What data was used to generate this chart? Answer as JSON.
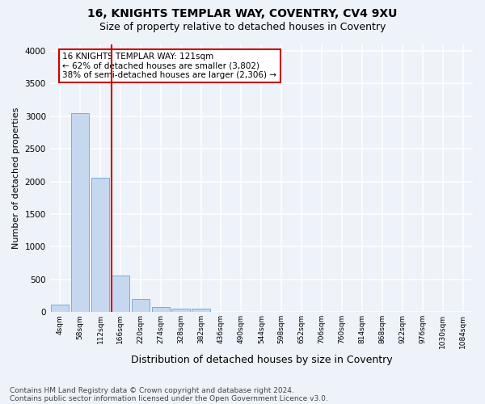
{
  "title1": "16, KNIGHTS TEMPLAR WAY, COVENTRY, CV4 9XU",
  "title2": "Size of property relative to detached houses in Coventry",
  "xlabel": "Distribution of detached houses by size in Coventry",
  "ylabel": "Number of detached properties",
  "bar_color": "#c5d8ef",
  "bar_edge_color": "#7aafd4",
  "categories": [
    "4sqm",
    "58sqm",
    "112sqm",
    "166sqm",
    "220sqm",
    "274sqm",
    "328sqm",
    "382sqm",
    "436sqm",
    "490sqm",
    "544sqm",
    "598sqm",
    "652sqm",
    "706sqm",
    "760sqm",
    "814sqm",
    "868sqm",
    "922sqm",
    "976sqm",
    "1030sqm",
    "1084sqm"
  ],
  "values": [
    120,
    3050,
    2060,
    560,
    205,
    80,
    55,
    55,
    0,
    0,
    0,
    0,
    0,
    0,
    0,
    0,
    0,
    0,
    0,
    0,
    0
  ],
  "ylim": [
    0,
    4100
  ],
  "yticks": [
    0,
    500,
    1000,
    1500,
    2000,
    2500,
    3000,
    3500,
    4000
  ],
  "vline_x": 2.57,
  "vline_color": "#cc0000",
  "annotation_text": "16 KNIGHTS TEMPLAR WAY: 121sqm\n← 62% of detached houses are smaller (3,802)\n38% of semi-detached houses are larger (2,306) →",
  "annotation_box_color": "#ffffff",
  "annotation_box_edge": "#cc0000",
  "footer1": "Contains HM Land Registry data © Crown copyright and database right 2024.",
  "footer2": "Contains public sector information licensed under the Open Government Licence v3.0.",
  "bg_color": "#eef2f9",
  "grid_color": "#ffffff",
  "title1_fontsize": 10,
  "title2_fontsize": 9,
  "xlabel_fontsize": 9,
  "ylabel_fontsize": 8,
  "annotation_fontsize": 7.5,
  "footer_fontsize": 6.5
}
